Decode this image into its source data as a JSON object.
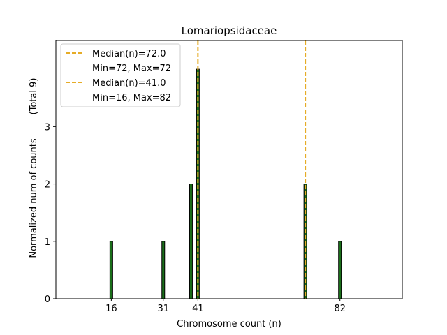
{
  "chart_data": {
    "type": "bar",
    "title": "Lomariopsidaceae",
    "xlabel": "Chromosome count (n)",
    "ylabel": "Normalized num of counts",
    "ylabel_total": "(Total 9)",
    "xlim": [
      0,
      100
    ],
    "ylim": [
      0,
      4.5
    ],
    "x_ticks": [
      16,
      31,
      41,
      82
    ],
    "y_ticks": [
      0,
      1,
      2,
      3
    ],
    "bars": [
      {
        "x": 16,
        "value": 1
      },
      {
        "x": 31,
        "value": 1
      },
      {
        "x": 39,
        "value": 2
      },
      {
        "x": 41,
        "value": 4
      },
      {
        "x": 72,
        "value": 2
      },
      {
        "x": 82,
        "value": 1
      }
    ],
    "medians": [
      {
        "label": "Median(n)=72.0",
        "range": "Min=72, Max=72",
        "x": 72,
        "color": "#e6ac27"
      },
      {
        "label": "Median(n)=41.0",
        "range": "Min=16, Max=82",
        "x": 41,
        "color": "#e6ac27"
      }
    ],
    "bar_color": "#1a6e1a",
    "legend_location": "top-left"
  }
}
